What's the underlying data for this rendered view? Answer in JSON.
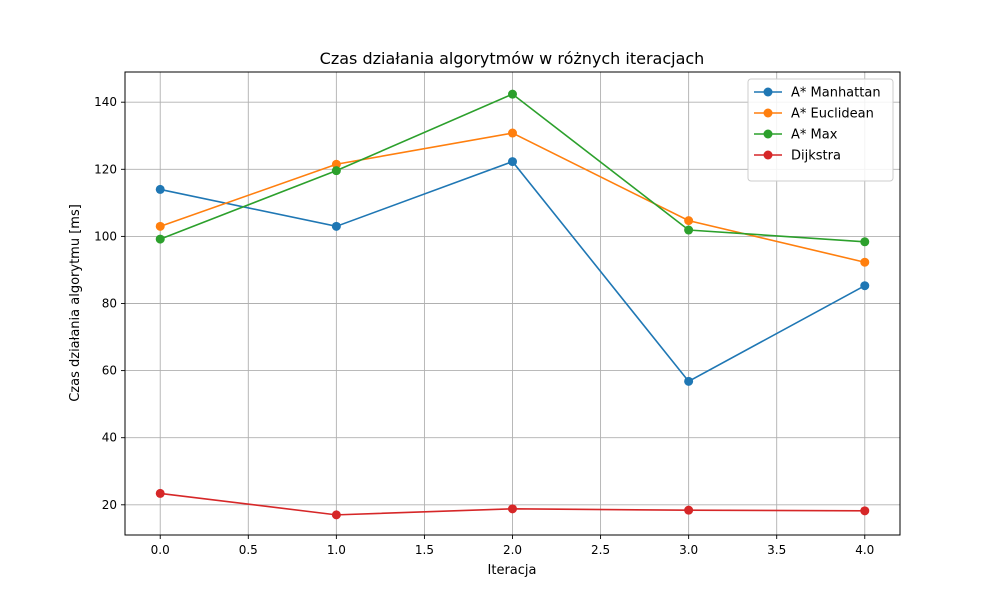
{
  "chart_data": {
    "type": "line",
    "title": "Czas działania algorytmów w różnych iteracjach",
    "xlabel": "Iteracja",
    "ylabel": "Czas działania algorytmu [ms]",
    "x": [
      0,
      1,
      2,
      3,
      4
    ],
    "xlim": [
      -0.2,
      4.2
    ],
    "ylim": [
      11,
      149
    ],
    "xticks": [
      0.0,
      0.5,
      1.0,
      1.5,
      2.0,
      2.5,
      3.0,
      3.5,
      4.0
    ],
    "xtick_labels": [
      "0.0",
      "0.5",
      "1.0",
      "1.5",
      "2.0",
      "2.5",
      "3.0",
      "3.5",
      "4.0"
    ],
    "yticks": [
      20,
      40,
      60,
      80,
      100,
      120,
      140
    ],
    "ytick_labels": [
      "20",
      "40",
      "60",
      "80",
      "100",
      "120",
      "140"
    ],
    "grid": true,
    "legend_position": "top-right",
    "series": [
      {
        "name": "A* Manhattan",
        "color": "#1f77b4",
        "values": [
          114.0,
          103.0,
          122.3,
          56.8,
          85.3
        ]
      },
      {
        "name": "A* Euclidean",
        "color": "#ff7f0e",
        "values": [
          103.0,
          121.5,
          130.8,
          104.7,
          92.3
        ]
      },
      {
        "name": "A* Max",
        "color": "#2ca02c",
        "values": [
          99.2,
          119.6,
          142.4,
          101.9,
          98.4
        ]
      },
      {
        "name": "Dijkstra",
        "color": "#d62728",
        "values": [
          23.4,
          17.0,
          18.8,
          18.4,
          18.2
        ]
      }
    ]
  }
}
